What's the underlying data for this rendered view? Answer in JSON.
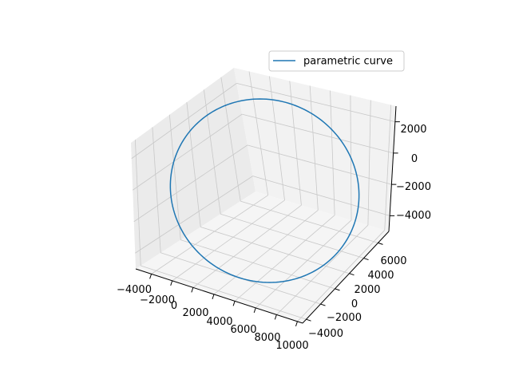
{
  "chart_data": {
    "type": "line",
    "projection": "3d",
    "title": "",
    "xlabel": "",
    "ylabel": "",
    "zlabel": "",
    "grid": true,
    "legend_position": "top-right",
    "series": [
      {
        "name": "parametric curve",
        "color": "#1f77b4",
        "curve": "circle",
        "center": {
          "x": 2500,
          "y": 1500,
          "z": -1000
        },
        "radius": 7000,
        "plane_normal": [
          0,
          0.57,
          0.82
        ]
      }
    ],
    "xlim": [
      -5500,
      10500
    ],
    "ylim": [
      -4500,
      7500
    ],
    "zlim": [
      -5000,
      3000
    ],
    "xticks": [
      "−4000",
      "−2000",
      "0",
      "2000",
      "4000",
      "6000",
      "8000",
      "10000"
    ],
    "yticks": [
      "−4000",
      "−2000",
      "0",
      "2000",
      "4000",
      "6000"
    ],
    "zticks": [
      "−4000",
      "−2000",
      "0",
      "2000"
    ]
  },
  "colors": {
    "pane_left": "#ebebeb",
    "pane_back": "#f2f2f2",
    "pane_floor": "#f5f5f5",
    "grid": "#c8c8c8",
    "axis": "#000000"
  }
}
